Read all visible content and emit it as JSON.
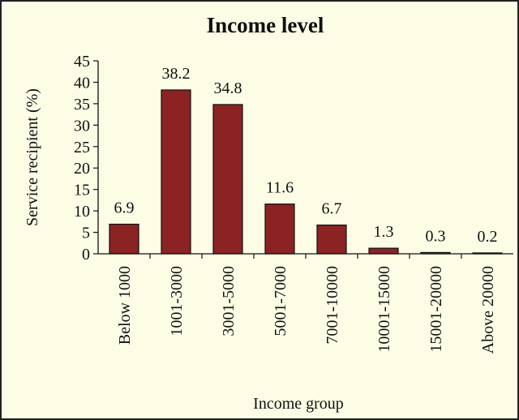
{
  "chart_data": {
    "type": "bar",
    "title": "Income level",
    "xlabel": "Income group",
    "ylabel": "Service recipient (%)",
    "ylim": [
      0,
      45
    ],
    "yticks": [
      0,
      5,
      10,
      15,
      20,
      25,
      30,
      35,
      40,
      45
    ],
    "categories": [
      "Below 1000",
      "1001-3000",
      "3001-5000",
      "5001-7000",
      "7001-10000",
      "10001-15000",
      "15001-20000",
      "Above 20000"
    ],
    "values": [
      6.9,
      38.2,
      34.8,
      11.6,
      6.7,
      1.3,
      0.3,
      0.2
    ],
    "data_labels": [
      "6.9",
      "38.2",
      "34.8",
      "11.6",
      "6.7",
      "1.3",
      "0.3",
      "0.2"
    ],
    "bar_color": "#8b2323",
    "background_color": "#fdfde6",
    "grid": false,
    "legend": "none"
  }
}
